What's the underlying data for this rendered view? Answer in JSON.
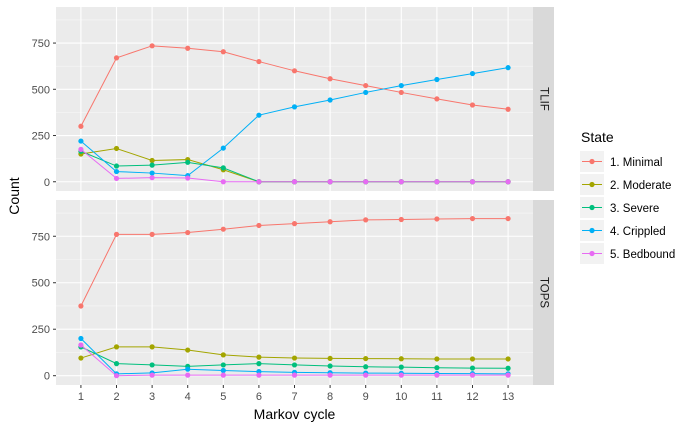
{
  "chart_data": {
    "type": "line",
    "xlabel": "Markov cycle",
    "ylabel": "Count",
    "x": [
      1,
      2,
      3,
      4,
      5,
      6,
      7,
      8,
      9,
      10,
      11,
      12,
      13
    ],
    "xlim": [
      0.3,
      13.7
    ],
    "ylim": [
      -50,
      945
    ],
    "yticks": [
      0,
      250,
      500,
      750
    ],
    "grid": true,
    "legend": {
      "title": "State",
      "placement": "right",
      "entries": [
        "1. Minimal",
        "2. Moderate",
        "3. Severe",
        "4. Crippled",
        "5. Bedbound"
      ]
    },
    "panels": [
      {
        "label": "TLIF",
        "series": [
          {
            "name": "1. Minimal",
            "color": "#F8766D",
            "values": [
              300,
              670,
              735,
              722,
              703,
              650,
              600,
              557,
              520,
              483,
              448,
              415,
              392
            ]
          },
          {
            "name": "2. Moderate",
            "color": "#A3A500",
            "values": [
              150,
              180,
              115,
              120,
              65,
              0,
              0,
              0,
              0,
              0,
              0,
              0,
              0
            ]
          },
          {
            "name": "3. Severe",
            "color": "#00BF7D",
            "values": [
              165,
              85,
              90,
              105,
              75,
              0,
              0,
              0,
              0,
              0,
              0,
              0,
              0
            ]
          },
          {
            "name": "4. Crippled",
            "color": "#00B0F6",
            "values": [
              220,
              55,
              47,
              33,
              182,
              360,
              405,
              442,
              483,
              520,
              553,
              585,
              617
            ]
          },
          {
            "name": "5. Bedbound",
            "color": "#E76BF3",
            "values": [
              175,
              18,
              22,
              20,
              0,
              0,
              0,
              0,
              0,
              0,
              0,
              0,
              0
            ]
          }
        ]
      },
      {
        "label": "TOPS",
        "series": [
          {
            "name": "1. Minimal",
            "color": "#F8766D",
            "values": [
              375,
              760,
              760,
              770,
              788,
              808,
              818,
              828,
              838,
              840,
              843,
              845,
              845
            ]
          },
          {
            "name": "2. Moderate",
            "color": "#A3A500",
            "values": [
              95,
              155,
              155,
              138,
              112,
              100,
              95,
              93,
              92,
              91,
              90,
              90,
              90
            ]
          },
          {
            "name": "3. Severe",
            "color": "#00BF7D",
            "values": [
              155,
              65,
              58,
              50,
              58,
              65,
              58,
              52,
              48,
              46,
              43,
              41,
              40
            ]
          },
          {
            "name": "4. Crippled",
            "color": "#00B0F6",
            "values": [
              200,
              10,
              15,
              35,
              28,
              22,
              18,
              16,
              14,
              13,
              12,
              11,
              10
            ]
          },
          {
            "name": "5. Bedbound",
            "color": "#E76BF3",
            "values": [
              165,
              0,
              3,
              3,
              3,
              3,
              3,
              3,
              3,
              3,
              3,
              3,
              3
            ]
          }
        ]
      }
    ]
  }
}
